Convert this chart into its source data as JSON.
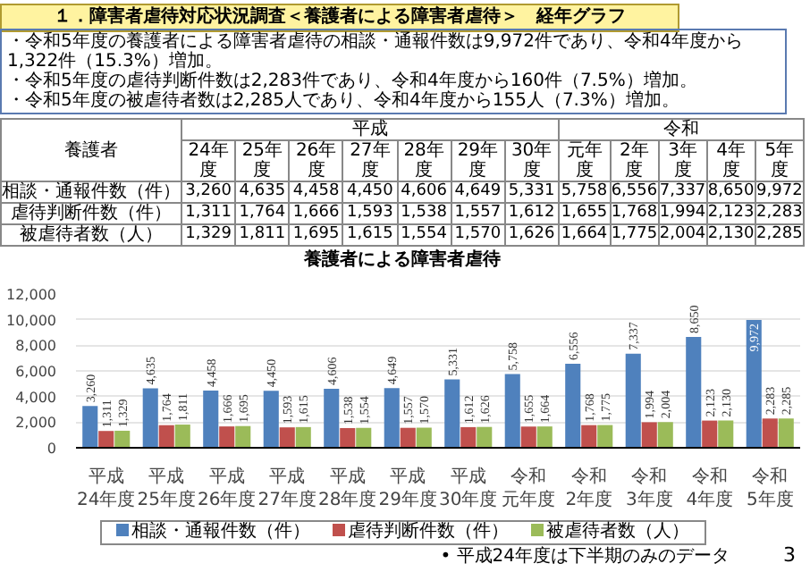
{
  "chart_data": {
    "type": "bar",
    "title": "養護者による障害者虐待",
    "categories": [
      "平成24年度",
      "平成25年度",
      "平成26年度",
      "平成27年度",
      "平成28年度",
      "平成29年度",
      "平成30年度",
      "令和元年度",
      "令和2年度",
      "令和3年度",
      "令和4年度",
      "令和5年度"
    ],
    "series": [
      {
        "name": "相談・通報件数（件）",
        "color": "#4f81bd",
        "values": [
          3260,
          4635,
          4458,
          4450,
          4606,
          4649,
          5331,
          5758,
          6556,
          7337,
          8650,
          9972
        ],
        "value_labels": [
          "3,260",
          "4,635",
          "4,458",
          "4,450",
          "4,606",
          "4,649",
          "5,331",
          "5,758",
          "6,556",
          "7,337",
          "8,650",
          "9,972"
        ]
      },
      {
        "name": "虐待判断件数（件）",
        "color": "#c0504d",
        "values": [
          1311,
          1764,
          1666,
          1593,
          1538,
          1557,
          1612,
          1655,
          1768,
          1994,
          2123,
          2283
        ],
        "value_labels": [
          "1,311",
          "1,764",
          "1,666",
          "1,593",
          "1,538",
          "1,557",
          "1,612",
          "1,655",
          "1,768",
          "1,994",
          "2,123",
          "2,283"
        ]
      },
      {
        "name": "被虐待者数（人）",
        "color": "#9bbb59",
        "values": [
          1329,
          1811,
          1695,
          1615,
          1554,
          1570,
          1626,
          1664,
          1775,
          2004,
          2130,
          2285
        ],
        "value_labels": [
          "1,329",
          "1,811",
          "1,695",
          "1,615",
          "1,554",
          "1,570",
          "1,626",
          "1,664",
          "1,775",
          "2,004",
          "2,130",
          "2,285"
        ]
      }
    ],
    "ylim": [
      0,
      12000
    ],
    "yticks": [
      {
        "value": 0,
        "label": "0"
      },
      {
        "value": 2000,
        "label": "2,000"
      },
      {
        "value": 4000,
        "label": "4,000"
      },
      {
        "value": 6000,
        "label": "6,000"
      },
      {
        "value": 8000,
        "label": "8,000"
      },
      {
        "value": 10000,
        "label": "10,000"
      },
      {
        "value": 12000,
        "label": "12,000"
      }
    ],
    "grid": "y",
    "legend": "bottom",
    "annotations": [
      "１．障害者虐待対応状況調査＜養護者による障害者虐待＞　経年グラフ",
      "・令和5年度の養護者による障害者虐待の相談・通報件数は9,972件であり、令和4年度から1,322件（15.3%）増加。",
      "・令和5年度の虐待判断件数は2,283件であり、令和4年度から160件（7.5%）増加。",
      "・令和5年度の被虐待者数は2,285人であり、令和4年度から155人（7.3%）増加。",
      "養護者",
      "平成",
      "令和",
      "24年度",
      "25年度",
      "26年度",
      "27年度",
      "28年度",
      "29年度",
      "30年度",
      "元年度",
      "2年度",
      "3年度",
      "4年度",
      "5年度",
      "• 平成24年度は下半期のみのデータ",
      "3"
    ]
  }
}
